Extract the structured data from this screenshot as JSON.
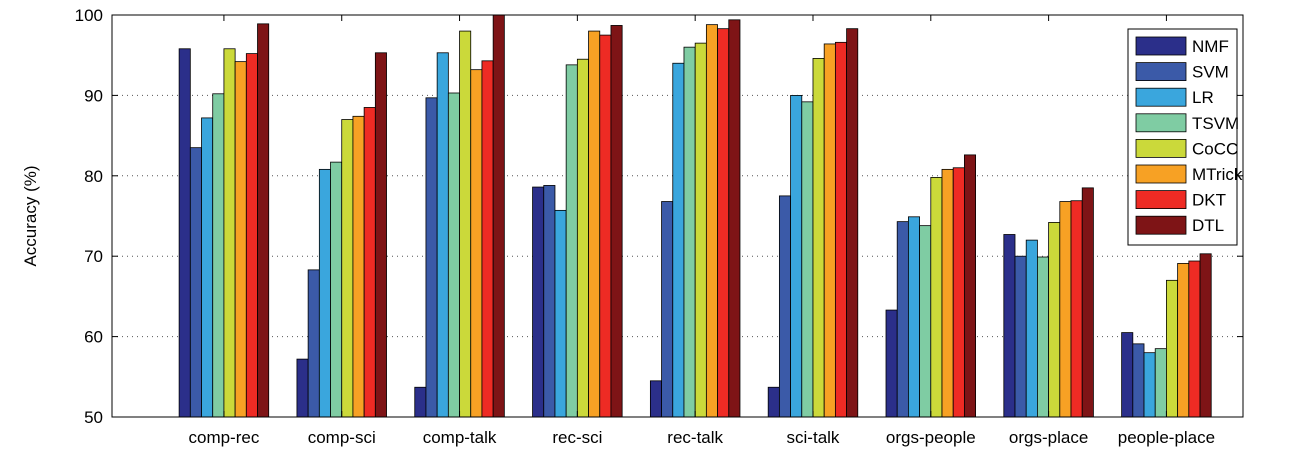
{
  "chart_data": {
    "type": "bar",
    "title": "",
    "xlabel": "",
    "ylabel": "Accuracy (%)",
    "ylim": [
      50,
      100
    ],
    "yticks": [
      50,
      60,
      70,
      80,
      90,
      100
    ],
    "grid": true,
    "legend_position": "top-right",
    "categories": [
      "comp-rec",
      "comp-sci",
      "comp-talk",
      "rec-sci",
      "rec-talk",
      "sci-talk",
      "orgs-people",
      "orgs-place",
      "people-place"
    ],
    "series": [
      {
        "name": "NMF",
        "color": "#2b2f8a",
        "values": [
          95.8,
          57.2,
          53.7,
          78.6,
          54.5,
          53.7,
          63.3,
          72.7,
          60.5
        ]
      },
      {
        "name": "SVM",
        "color": "#3b5aa8",
        "values": [
          83.5,
          68.3,
          89.7,
          78.8,
          76.8,
          77.5,
          74.3,
          70.0,
          59.1
        ]
      },
      {
        "name": "LR",
        "color": "#3aa6dd",
        "values": [
          87.2,
          80.8,
          95.3,
          75.7,
          94.0,
          90.0,
          74.9,
          72.0,
          58.0
        ]
      },
      {
        "name": "TSVM",
        "color": "#7fcca3",
        "values": [
          90.2,
          81.7,
          90.3,
          93.8,
          96.0,
          89.2,
          73.8,
          69.9,
          58.5
        ]
      },
      {
        "name": "CoCC",
        "color": "#cbd93a",
        "values": [
          95.8,
          87.0,
          98.0,
          94.5,
          96.5,
          94.6,
          79.8,
          74.2,
          67.0
        ]
      },
      {
        "name": "MTrick",
        "color": "#f7a124",
        "values": [
          94.2,
          87.4,
          93.2,
          98.0,
          98.8,
          96.4,
          80.8,
          76.8,
          69.1
        ]
      },
      {
        "name": "DKT",
        "color": "#ee2b24",
        "values": [
          95.2,
          88.5,
          94.3,
          97.5,
          98.3,
          96.6,
          81.0,
          76.9,
          69.4
        ]
      },
      {
        "name": "DTL",
        "color": "#7e1416",
        "values": [
          98.9,
          95.3,
          100.0,
          98.7,
          99.4,
          98.3,
          82.6,
          78.5,
          70.3
        ]
      }
    ]
  }
}
